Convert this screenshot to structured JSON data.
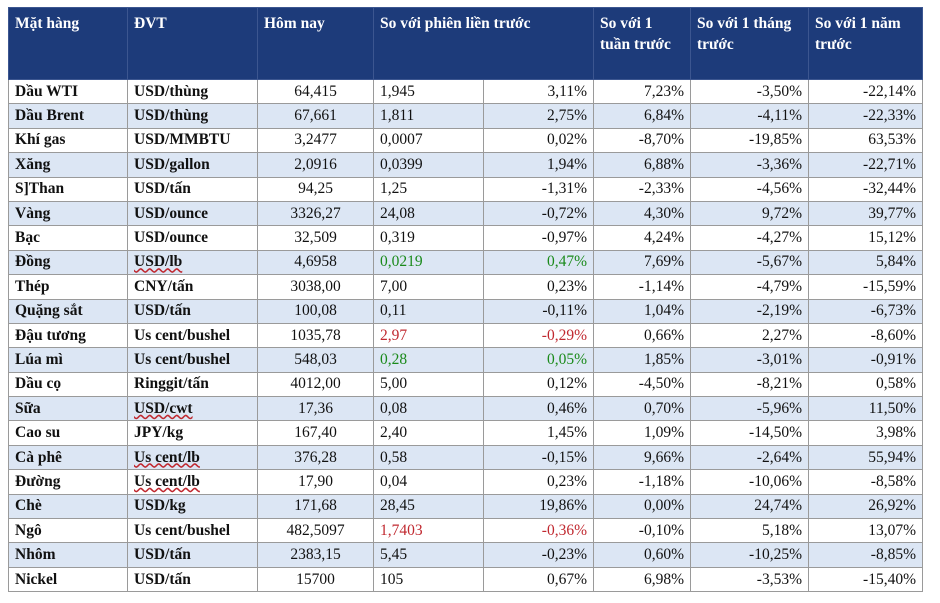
{
  "header": {
    "item": "Mặt hàng",
    "unit": "ĐVT",
    "today": "Hôm nay",
    "vs_prev": "So với phiên liền trước",
    "vs_week": "So với 1 tuần trước",
    "vs_month": "So với 1 tháng trước",
    "vs_year": "So với 1 năm trước"
  },
  "rows": [
    {
      "name": "Dầu WTI",
      "unit": "USD/thùng",
      "today": "64,415",
      "abs": "1,945",
      "pct": "3,11%",
      "week": "7,23%",
      "month": "-3,50%",
      "year": "-22,14%"
    },
    {
      "name": "Dầu Brent",
      "unit": "USD/thùng",
      "today": "67,661",
      "abs": "1,811",
      "pct": "2,75%",
      "week": "6,84%",
      "month": "-4,11%",
      "year": "-22,33%"
    },
    {
      "name": "Khí gas",
      "unit": "USD/MMBTU",
      "today": "3,2477",
      "abs": "0,0007",
      "pct": "0,02%",
      "week": "-8,70%",
      "month": "-19,85%",
      "year": "63,53%"
    },
    {
      "name": "Xăng",
      "unit": "USD/gallon",
      "today": "2,0916",
      "abs": "0,0399",
      "pct": "1,94%",
      "week": "6,88%",
      "month": "-3,36%",
      "year": "-22,71%"
    },
    {
      "name": "S]Than",
      "unit": "USD/tấn",
      "today": "94,25",
      "abs": "1,25",
      "pct": "-1,31%",
      "week": "-2,33%",
      "month": "-4,56%",
      "year": "-32,44%"
    },
    {
      "name": "Vàng",
      "unit": "USD/ounce",
      "today": "3326,27",
      "abs": "24,08",
      "pct": "-0,72%",
      "week": "4,30%",
      "month": "9,72%",
      "year": "39,77%"
    },
    {
      "name": "Bạc",
      "unit": "USD/ounce",
      "today": "32,509",
      "abs": "0,319",
      "pct": "-0,97%",
      "week": "4,24%",
      "month": "-4,27%",
      "year": "15,12%"
    },
    {
      "name": "Đồng",
      "unit": "USD/lb",
      "today": "4,6958",
      "abs": "0,0219",
      "pct": "0,47%",
      "week": "7,69%",
      "month": "-5,67%",
      "year": "5,84%",
      "abs_cls": "pos",
      "pct_cls": "pos",
      "unit_ul": true
    },
    {
      "name": "Thép",
      "unit": "CNY/tấn",
      "today": "3038,00",
      "abs": "7,00",
      "pct": "0,23%",
      "week": "-1,14%",
      "month": "-4,79%",
      "year": "-15,59%"
    },
    {
      "name": "Quặng sắt",
      "unit": "USD/tấn",
      "today": "100,08",
      "abs": "0,11",
      "pct": "-0,11%",
      "week": "1,04%",
      "month": "-2,19%",
      "year": "-6,73%"
    },
    {
      "name": "Đậu tương",
      "unit": "Us cent/bushel",
      "today": "1035,78",
      "abs": "2,97",
      "pct": "-0,29%",
      "week": "0,66%",
      "month": "2,27%",
      "year": "-8,60%",
      "abs_cls": "neg",
      "pct_cls": "neg"
    },
    {
      "name": "Lúa mì",
      "unit": "Us cent/bushel",
      "today": "548,03",
      "abs": "0,28",
      "pct": "0,05%",
      "week": "1,85%",
      "month": "-3,01%",
      "year": "-0,91%",
      "abs_cls": "pos",
      "pct_cls": "pos"
    },
    {
      "name": "Dầu cọ",
      "unit": "Ringgit/tấn",
      "today": "4012,00",
      "abs": "5,00",
      "pct": "0,12%",
      "week": "-4,50%",
      "month": "-8,21%",
      "year": "0,58%"
    },
    {
      "name": "Sữa",
      "unit": "USD/cwt",
      "today": "17,36",
      "abs": "0,08",
      "pct": "0,46%",
      "week": "0,70%",
      "month": "-5,96%",
      "year": "11,50%",
      "unit_ul": true
    },
    {
      "name": "Cao su",
      "unit": "JPY/kg",
      "today": "167,40",
      "abs": "2,40",
      "pct": "1,45%",
      "week": "1,09%",
      "month": "-14,50%",
      "year": "3,98%"
    },
    {
      "name": "Cà phê",
      "unit": "Us cent/lb",
      "today": "376,28",
      "abs": "0,58",
      "pct": "-0,15%",
      "week": "9,66%",
      "month": "-2,64%",
      "year": "55,94%",
      "unit_ul": true
    },
    {
      "name": "Đường",
      "unit": "Us cent/lb",
      "today": "17,90",
      "abs": "0,04",
      "pct": "0,23%",
      "week": "-1,18%",
      "month": "-10,06%",
      "year": "-8,58%",
      "unit_ul": true
    },
    {
      "name": "Chè",
      "unit": "USD/kg",
      "today": "171,68",
      "abs": "28,45",
      "pct": "19,86%",
      "week": "0,00%",
      "month": "24,74%",
      "year": "26,92%"
    },
    {
      "name": "Ngô",
      "unit": "Us cent/bushel",
      "today": "482,5097",
      "abs": "1,7403",
      "pct": "-0,36%",
      "week": "-0,10%",
      "month": "5,18%",
      "year": "13,07%",
      "abs_cls": "neg",
      "pct_cls": "neg"
    },
    {
      "name": "Nhôm",
      "unit": "USD/tấn",
      "today": "2383,15",
      "abs": "5,45",
      "pct": "-0,23%",
      "week": "0,60%",
      "month": "-10,25%",
      "year": "-8,85%"
    },
    {
      "name": "Nickel",
      "unit": "USD/tấn",
      "today": "15700",
      "abs": "105",
      "pct": "0,67%",
      "week": "6,98%",
      "month": "-3,53%",
      "year": "-15,40%"
    }
  ]
}
